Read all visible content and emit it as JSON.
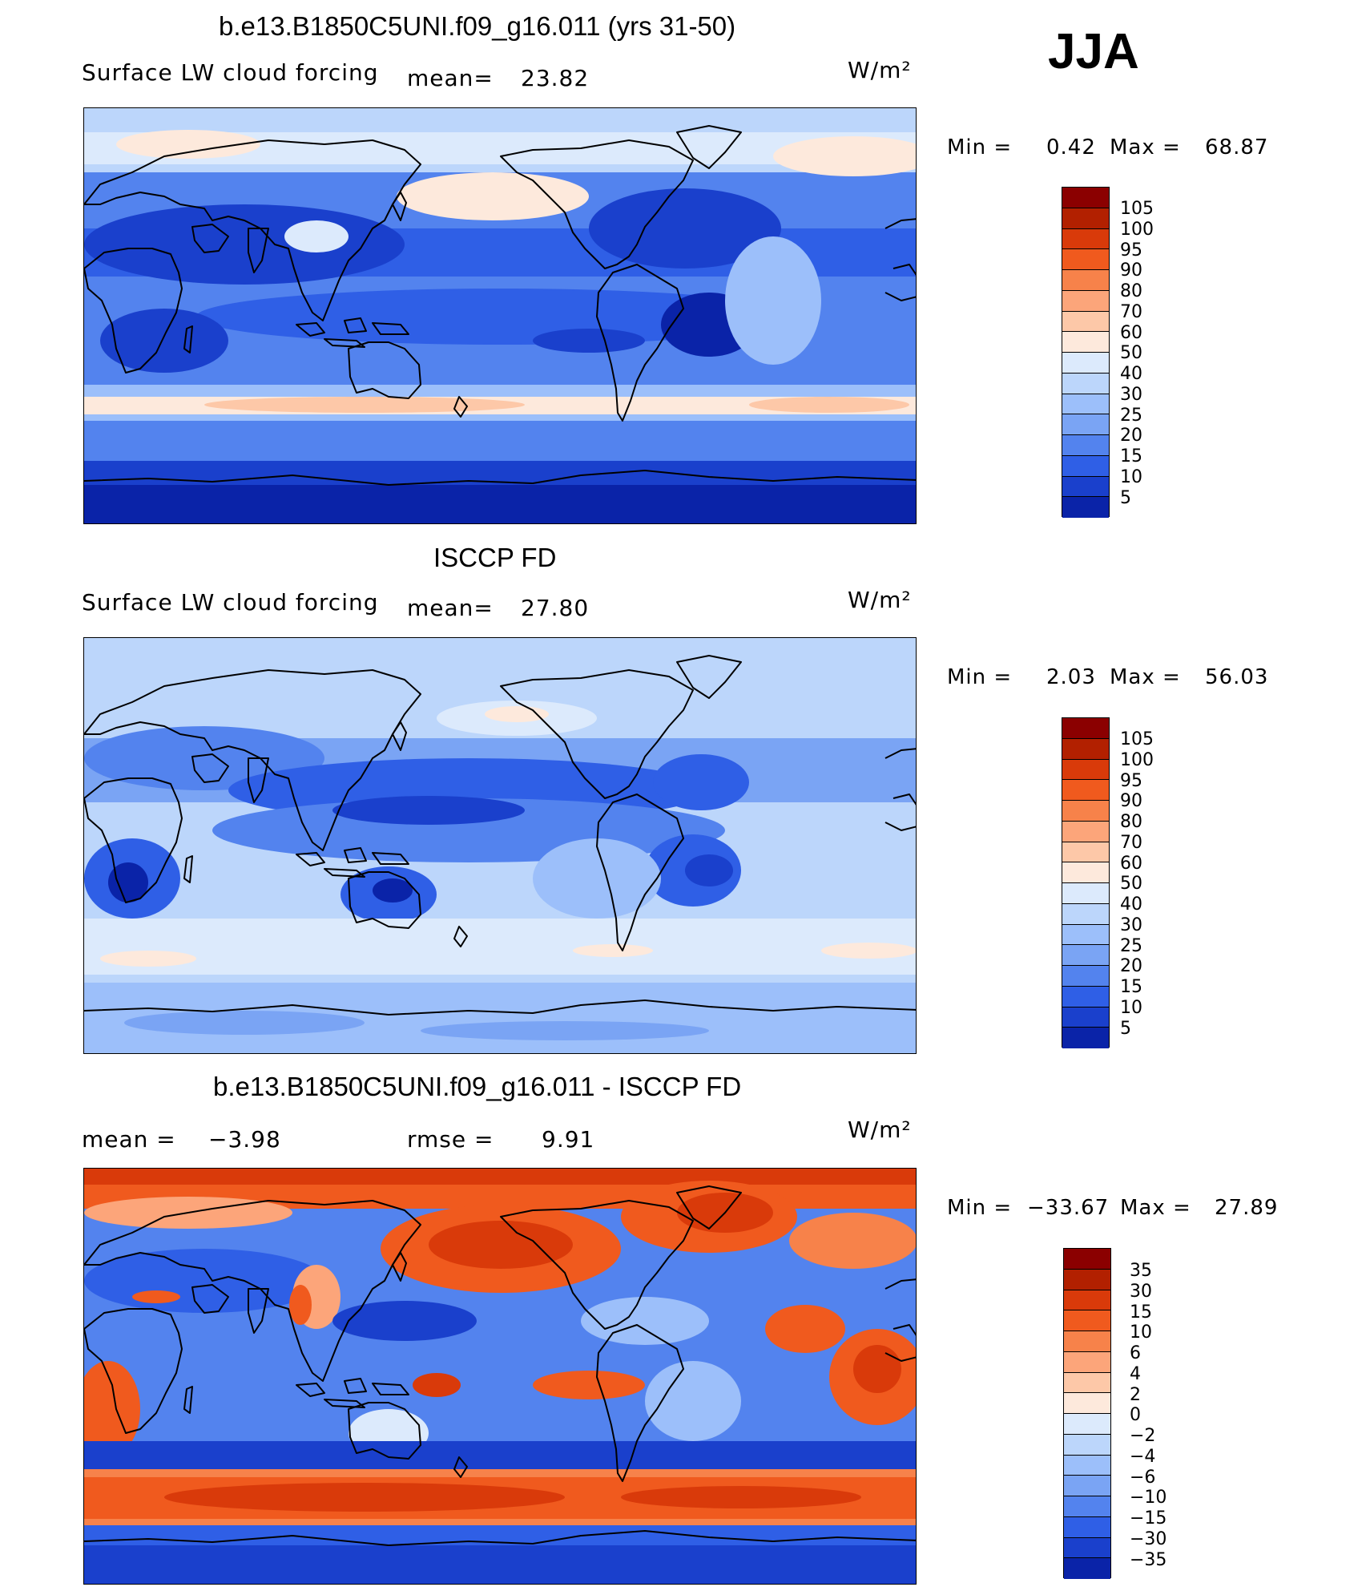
{
  "season": "JJA",
  "unit": "W/m²",
  "panels": [
    {
      "title": "b.e13.B1850C5UNI.f09_g16.011 (yrs 31-50)",
      "variable": "Surface LW cloud forcing",
      "mean_label": "mean=",
      "mean_value": "23.82",
      "min_label": "Min =",
      "min_value": "0.42",
      "max_label": "Max =",
      "max_value": "68.87",
      "colorbar": {
        "labels": [
          "105",
          "100",
          "95",
          "90",
          "80",
          "70",
          "60",
          "50",
          "40",
          "30",
          "25",
          "20",
          "15",
          "10",
          "5"
        ],
        "colors": [
          "#8b0000",
          "#b22000",
          "#d93a0a",
          "#f05a1e",
          "#f7824a",
          "#fca57a",
          "#fdc8a8",
          "#fde9dc",
          "#dceafc",
          "#bcd6fb",
          "#9cbffa",
          "#7aa4f4",
          "#5383ee",
          "#2f5fe6",
          "#1a40cc",
          "#0a23a8"
        ]
      }
    },
    {
      "title": "ISCCP FD",
      "variable": "Surface LW cloud forcing",
      "mean_label": "mean=",
      "mean_value": "27.80",
      "min_label": "Min =",
      "min_value": "2.03",
      "max_label": "Max =",
      "max_value": "56.03",
      "colorbar": {
        "labels": [
          "105",
          "100",
          "95",
          "90",
          "80",
          "70",
          "60",
          "50",
          "40",
          "30",
          "25",
          "20",
          "15",
          "10",
          "5"
        ],
        "colors": [
          "#8b0000",
          "#b22000",
          "#d93a0a",
          "#f05a1e",
          "#f7824a",
          "#fca57a",
          "#fdc8a8",
          "#fde9dc",
          "#dceafc",
          "#bcd6fb",
          "#9cbffa",
          "#7aa4f4",
          "#5383ee",
          "#2f5fe6",
          "#1a40cc",
          "#0a23a8"
        ]
      }
    },
    {
      "title": "b.e13.B1850C5UNI.f09_g16.011 - ISCCP FD",
      "mean_label": "mean =",
      "mean_value": "−3.98",
      "rmse_label": "rmse =",
      "rmse_value": "9.91",
      "min_label": "Min =",
      "min_value": "−33.67",
      "max_label": "Max =",
      "max_value": "27.89",
      "colorbar": {
        "labels": [
          "35",
          "30",
          "15",
          "10",
          "6",
          "4",
          "2",
          "0",
          "−2",
          "−4",
          "−6",
          "−10",
          "−15",
          "−30",
          "−35"
        ],
        "colors": [
          "#8b0000",
          "#b22000",
          "#d93a0a",
          "#f05a1e",
          "#f7824a",
          "#fca57a",
          "#fdc8a8",
          "#fde9dc",
          "#dceafc",
          "#bcd6fb",
          "#9cbffa",
          "#7aa4f4",
          "#5383ee",
          "#2f5fe6",
          "#1a40cc",
          "#0a23a8"
        ]
      }
    }
  ]
}
